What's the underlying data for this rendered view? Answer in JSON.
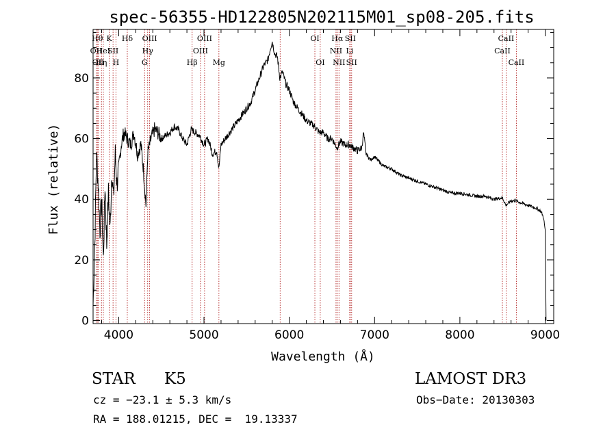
{
  "chart_data": {
    "type": "line",
    "title": "spec-56355-HD122805N202115M01_sp08-205.fits",
    "xlabel": "Wavelength (Å)",
    "ylabel": "Flux (relative)",
    "xlim": [
      3700,
      9100
    ],
    "ylim": [
      -1,
      96
    ],
    "x_ticks": [
      4000,
      5000,
      6000,
      7000,
      8000,
      9000
    ],
    "y_ticks": [
      0,
      20,
      40,
      60,
      80
    ],
    "series": [
      {
        "name": "flux",
        "x": [
          3700,
          3720,
          3740,
          3760,
          3780,
          3800,
          3820,
          3840,
          3860,
          3880,
          3900,
          3920,
          3940,
          3960,
          3980,
          4000,
          4030,
          4060,
          4100,
          4140,
          4180,
          4220,
          4260,
          4290,
          4320,
          4340,
          4380,
          4420,
          4460,
          4500,
          4550,
          4600,
          4650,
          4700,
          4750,
          4800,
          4850,
          4900,
          4950,
          5000,
          5050,
          5100,
          5150,
          5175,
          5200,
          5250,
          5300,
          5350,
          5400,
          5450,
          5500,
          5550,
          5600,
          5650,
          5700,
          5750,
          5780,
          5800,
          5830,
          5860,
          5890,
          5920,
          5960,
          6000,
          6050,
          6100,
          6150,
          6200,
          6250,
          6300,
          6350,
          6400,
          6450,
          6500,
          6560,
          6600,
          6650,
          6700,
          6750,
          6800,
          6850,
          6870,
          6900,
          6950,
          7000,
          7100,
          7200,
          7300,
          7400,
          7500,
          7600,
          7700,
          7800,
          7900,
          8000,
          8100,
          8200,
          8300,
          8400,
          8500,
          8540,
          8600,
          8660,
          8700,
          8800,
          8900,
          8950,
          8980,
          9000,
          9010
        ],
        "y": [
          5,
          25,
          55,
          45,
          30,
          40,
          20,
          45,
          25,
          42,
          30,
          50,
          40,
          55,
          45,
          50,
          58,
          62,
          60,
          58,
          62,
          55,
          58,
          50,
          38,
          55,
          60,
          63,
          62,
          60,
          61,
          62,
          64,
          63,
          60,
          58,
          63,
          62,
          61,
          58,
          60,
          55,
          56,
          50,
          58,
          60,
          62,
          64,
          66,
          68,
          70,
          72,
          76,
          80,
          84,
          86,
          90,
          92,
          88,
          87,
          80,
          82,
          78,
          76,
          72,
          70,
          68,
          66,
          65,
          64,
          62,
          62,
          60,
          60,
          57,
          59,
          58,
          58,
          57,
          56,
          57,
          62,
          55,
          53,
          54,
          51,
          50,
          48,
          47,
          46,
          45,
          44,
          43,
          42,
          42,
          41.5,
          41,
          41,
          40,
          40.5,
          38,
          39.5,
          39.5,
          39,
          38,
          37,
          36,
          34,
          30,
          0
        ]
      }
    ],
    "line_markers": [
      {
        "wavelength": 3750,
        "label": "Hθ",
        "row": 0
      },
      {
        "wavelength": 3736,
        "label": "OII",
        "row": 1
      },
      {
        "wavelength": 3760,
        "label": "OII",
        "row": 2
      },
      {
        "wavelength": 3798,
        "label": "Hη",
        "row": 2
      },
      {
        "wavelength": 3820,
        "label": "HeI",
        "row": 1
      },
      {
        "wavelength": 3889,
        "label": "K",
        "row": 0
      },
      {
        "wavelength": 3934,
        "label": "SII",
        "row": 1
      },
      {
        "wavelength": 3968,
        "label": "H",
        "row": 2
      },
      {
        "wavelength": 4101,
        "label": "Hδ",
        "row": 0
      },
      {
        "wavelength": 4304,
        "label": "G",
        "row": 2
      },
      {
        "wavelength": 4340,
        "label": "Hγ",
        "row": 1
      },
      {
        "wavelength": 4363,
        "label": "OIII",
        "row": 0
      },
      {
        "wavelength": 4861,
        "label": "Hβ",
        "row": 2
      },
      {
        "wavelength": 4959,
        "label": "OIII",
        "row": 1
      },
      {
        "wavelength": 5007,
        "label": "OIII",
        "row": 0
      },
      {
        "wavelength": 5175,
        "label": "Mg",
        "row": 2
      },
      {
        "wavelength": 5893,
        "label": "",
        "row": 0
      },
      {
        "wavelength": 6300,
        "label": "OI",
        "row": 0
      },
      {
        "wavelength": 6363,
        "label": "OI",
        "row": 2
      },
      {
        "wavelength": 6548,
        "label": "NII",
        "row": 1
      },
      {
        "wavelength": 6563,
        "label": "Hα",
        "row": 0
      },
      {
        "wavelength": 6583,
        "label": "NII",
        "row": 2
      },
      {
        "wavelength": 6708,
        "label": "Li",
        "row": 1
      },
      {
        "wavelength": 6716,
        "label": "SII",
        "row": 0
      },
      {
        "wavelength": 6731,
        "label": "SII",
        "row": 2
      },
      {
        "wavelength": 8498,
        "label": "CaII",
        "row": 1
      },
      {
        "wavelength": 8542,
        "label": "CaII",
        "row": 0
      },
      {
        "wavelength": 8662,
        "label": "CaII",
        "row": 2
      }
    ],
    "colors": {
      "spectrum": "#000000",
      "markers": "#b22222"
    }
  },
  "info": {
    "class_label": "STAR",
    "subclass": "K5",
    "survey": "LAMOST DR3",
    "cz": "cz = −23.1 ± 5.3 km/s",
    "obs_date": "Obs−Date: 20130303",
    "coords": "RA = 188.01215, DEC =  19.13337"
  }
}
